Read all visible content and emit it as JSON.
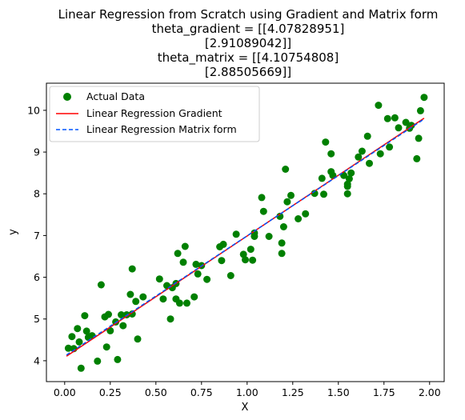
{
  "chart_data": {
    "type": "scatter",
    "title_lines": [
      "Linear Regression from Scratch using Gradient and Matrix form",
      "theta_gradient = [[4.07828951]",
      "[2.91089042]]",
      "theta_matrix = [[4.10754808]",
      "[2.88505669]]"
    ],
    "xlabel": "X",
    "ylabel": "y",
    "xlim": [
      -0.1,
      2.08
    ],
    "ylim": [
      3.5,
      10.65
    ],
    "xticks": [
      "0.00",
      "0.25",
      "0.50",
      "0.75",
      "1.00",
      "1.25",
      "1.50",
      "1.75",
      "2.00"
    ],
    "yticks": [
      "4",
      "5",
      "6",
      "7",
      "8",
      "9",
      "10"
    ],
    "grid": false,
    "legend_position": "upper-left",
    "series": [
      {
        "name": "Actual Data",
        "kind": "scatter",
        "color": "#008000",
        "points": [
          [
            0.02,
            4.3
          ],
          [
            0.04,
            4.58
          ],
          [
            0.05,
            4.29
          ],
          [
            0.07,
            4.77
          ],
          [
            0.08,
            4.45
          ],
          [
            0.09,
            3.82
          ],
          [
            0.11,
            5.08
          ],
          [
            0.12,
            4.71
          ],
          [
            0.13,
            4.56
          ],
          [
            0.15,
            4.6
          ],
          [
            0.18,
            3.99
          ],
          [
            0.2,
            5.82
          ],
          [
            0.22,
            5.05
          ],
          [
            0.23,
            4.33
          ],
          [
            0.24,
            5.11
          ],
          [
            0.25,
            4.72
          ],
          [
            0.28,
            4.93
          ],
          [
            0.29,
            4.03
          ],
          [
            0.31,
            5.1
          ],
          [
            0.32,
            4.84
          ],
          [
            0.34,
            5.1
          ],
          [
            0.36,
            5.59
          ],
          [
            0.37,
            6.2
          ],
          [
            0.37,
            5.12
          ],
          [
            0.39,
            5.42
          ],
          [
            0.4,
            4.52
          ],
          [
            0.43,
            5.53
          ],
          [
            0.52,
            5.96
          ],
          [
            0.54,
            5.48
          ],
          [
            0.56,
            5.8
          ],
          [
            0.58,
            5.0
          ],
          [
            0.59,
            5.75
          ],
          [
            0.61,
            5.85
          ],
          [
            0.61,
            5.48
          ],
          [
            0.62,
            6.57
          ],
          [
            0.63,
            5.38
          ],
          [
            0.65,
            6.36
          ],
          [
            0.66,
            6.74
          ],
          [
            0.67,
            5.38
          ],
          [
            0.71,
            5.53
          ],
          [
            0.72,
            6.31
          ],
          [
            0.73,
            6.08
          ],
          [
            0.75,
            6.28
          ],
          [
            0.78,
            5.95
          ],
          [
            0.85,
            6.73
          ],
          [
            0.86,
            6.4
          ],
          [
            0.87,
            6.79
          ],
          [
            0.91,
            6.04
          ],
          [
            0.94,
            7.03
          ],
          [
            0.98,
            6.55
          ],
          [
            0.99,
            6.42
          ],
          [
            1.02,
            6.67
          ],
          [
            1.03,
            6.41
          ],
          [
            1.04,
            7.06
          ],
          [
            1.04,
            6.98
          ],
          [
            1.08,
            7.91
          ],
          [
            1.09,
            7.58
          ],
          [
            1.12,
            6.98
          ],
          [
            1.18,
            7.46
          ],
          [
            1.19,
            6.57
          ],
          [
            1.19,
            6.82
          ],
          [
            1.2,
            7.21
          ],
          [
            1.21,
            8.59
          ],
          [
            1.22,
            7.81
          ],
          [
            1.24,
            7.96
          ],
          [
            1.28,
            7.4
          ],
          [
            1.32,
            7.52
          ],
          [
            1.37,
            8.01
          ],
          [
            1.41,
            8.37
          ],
          [
            1.42,
            7.99
          ],
          [
            1.43,
            9.24
          ],
          [
            1.46,
            8.96
          ],
          [
            1.46,
            8.53
          ],
          [
            1.47,
            8.44
          ],
          [
            1.53,
            8.44
          ],
          [
            1.55,
            8.23
          ],
          [
            1.55,
            8.18
          ],
          [
            1.55,
            8.0
          ],
          [
            1.56,
            8.36
          ],
          [
            1.57,
            8.5
          ],
          [
            1.61,
            8.88
          ],
          [
            1.63,
            9.02
          ],
          [
            1.66,
            9.38
          ],
          [
            1.67,
            8.73
          ],
          [
            1.72,
            10.12
          ],
          [
            1.73,
            8.96
          ],
          [
            1.77,
            9.8
          ],
          [
            1.78,
            9.12
          ],
          [
            1.81,
            9.82
          ],
          [
            1.83,
            9.58
          ],
          [
            1.87,
            9.71
          ],
          [
            1.89,
            9.57
          ],
          [
            1.9,
            9.64
          ],
          [
            1.93,
            8.84
          ],
          [
            1.94,
            9.33
          ],
          [
            1.95,
            9.99
          ],
          [
            1.97,
            10.31
          ]
        ]
      },
      {
        "name": "Linear Regression Gradient",
        "kind": "line",
        "color": "#ff0000",
        "dash": "solid",
        "x": [
          0.01,
          1.97
        ],
        "y": [
          4.107,
          9.813
        ]
      },
      {
        "name": "Linear Regression Matrix form",
        "kind": "line",
        "color": "#0055ff",
        "dash": "dashed",
        "x": [
          0.01,
          1.97
        ],
        "y": [
          4.136,
          9.791
        ]
      }
    ]
  }
}
